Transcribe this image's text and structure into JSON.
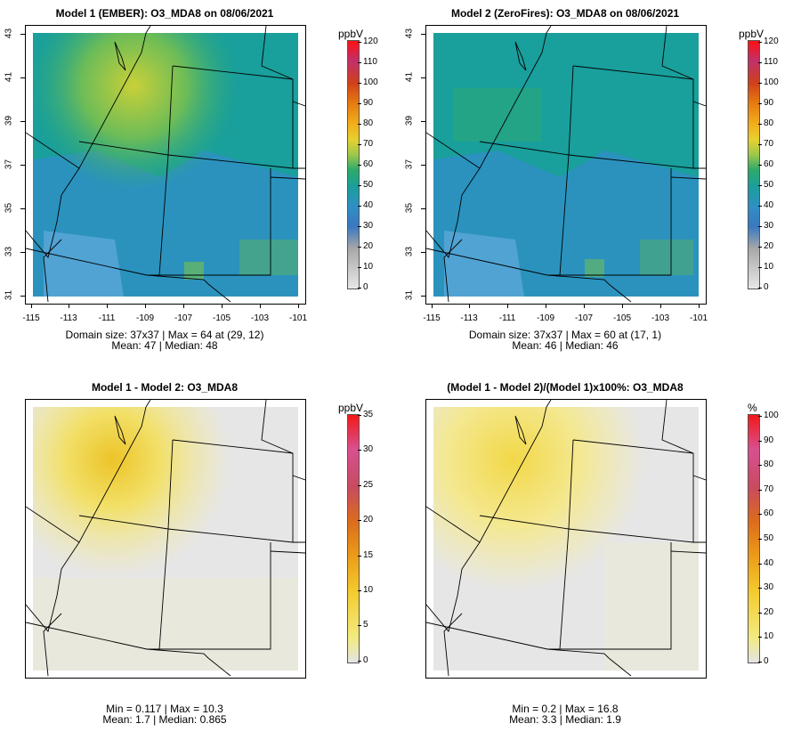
{
  "colors": {
    "o3_gradient": [
      "#d9d9d9",
      "#a0a0a0",
      "#3a78c0",
      "#2f8fc4",
      "#199f9c",
      "#2eaa6a",
      "#8cc24a",
      "#d8d138",
      "#f2b11c",
      "#e67a10",
      "#d94020",
      "#c8387a",
      "#ff1010"
    ],
    "diff_gradient": [
      "#e4e4e4",
      "#f2e87c",
      "#f5d238",
      "#f0b424",
      "#e88c18",
      "#dc6c1c",
      "#d05a40",
      "#c84a70",
      "#d84c88",
      "#f02020"
    ],
    "bg_low": "#5aa8d8",
    "bg_mid": "#1f9a96"
  },
  "panels": [
    {
      "title": "Model 1 (EMBER): O3_MDA8 on 08/06/2021",
      "colorbar": {
        "unit": "ppbV",
        "ticks": [
          "120",
          "110",
          "100",
          "90",
          "80",
          "70",
          "60",
          "50",
          "40",
          "30",
          "20",
          "10",
          "0"
        ]
      },
      "y_ticks": [
        "43",
        "41",
        "39",
        "37",
        "35",
        "33",
        "31"
      ],
      "x_ticks": [
        "-115",
        "-113",
        "-111",
        "-109",
        "-107",
        "-105",
        "-103",
        "-101"
      ],
      "stats_line1": "Domain size: 37x37 | Max = 64 at (29, 12)",
      "stats_line2": "Mean: 47 |  Median: 48"
    },
    {
      "title": "Model 2 (ZeroFires): O3_MDA8 on 08/06/2021",
      "colorbar": {
        "unit": "ppbV",
        "ticks": [
          "120",
          "110",
          "100",
          "90",
          "80",
          "70",
          "60",
          "50",
          "40",
          "30",
          "20",
          "10",
          "0"
        ]
      },
      "y_ticks": [
        "43",
        "41",
        "39",
        "37",
        "35",
        "33",
        "31"
      ],
      "x_ticks": [
        "-115",
        "-113",
        "-111",
        "-109",
        "-107",
        "-105",
        "-103",
        "-101"
      ],
      "stats_line1": "Domain size: 37x37 | Max = 60 at (17, 1)",
      "stats_line2": "Mean: 46 |  Median: 46"
    },
    {
      "title": "Model 1 - Model 2: O3_MDA8",
      "colorbar": {
        "unit": "ppbV",
        "ticks": [
          "35",
          "30",
          "25",
          "20",
          "15",
          "10",
          "5",
          "0"
        ]
      },
      "stats_line1": "Min = 0.117 | Max = 10.3",
      "stats_line2": "Mean: 1.7 |  Median: 0.865"
    },
    {
      "title": "(Model 1 - Model 2)/(Model 1)x100%: O3_MDA8",
      "colorbar": {
        "unit": "%",
        "ticks": [
          "100",
          "90",
          "80",
          "70",
          "60",
          "50",
          "40",
          "30",
          "20",
          "10",
          "0"
        ]
      },
      "stats_line1": "Min = 0.2 | Max = 16.8",
      "stats_line2": "Mean: 3.3 |  Median: 1.9"
    }
  ]
}
